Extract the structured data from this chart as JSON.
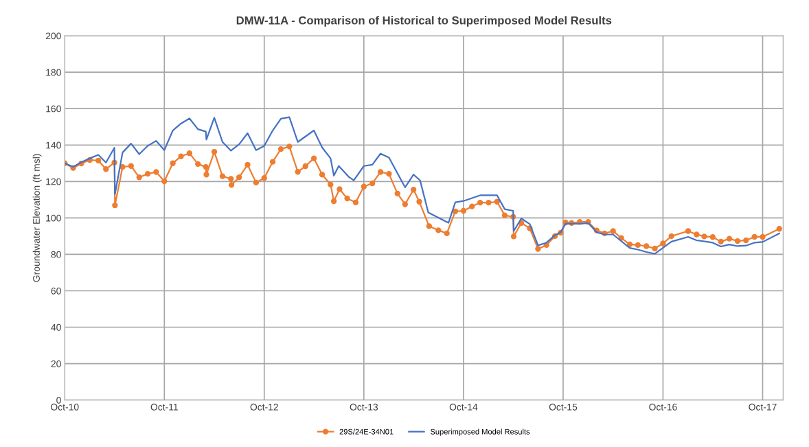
{
  "chart_data": {
    "type": "line",
    "title": "DMW-11A - Comparison of Historical to Superimposed Model Results",
    "ylabel": "Groundwater Elevation (ft msl)",
    "xlim": [
      "2010-10-01",
      "2017-12-15"
    ],
    "ylim": [
      0,
      200
    ],
    "yticks": [
      0,
      20,
      40,
      60,
      80,
      100,
      120,
      140,
      160,
      180,
      200
    ],
    "xticks": [
      {
        "value": "2010-10-01",
        "label": "Oct-10"
      },
      {
        "value": "2011-10-01",
        "label": "Oct-11"
      },
      {
        "value": "2012-10-01",
        "label": "Oct-12"
      },
      {
        "value": "2013-10-01",
        "label": "Oct-13"
      },
      {
        "value": "2014-10-01",
        "label": "Oct-14"
      },
      {
        "value": "2015-10-01",
        "label": "Oct-15"
      },
      {
        "value": "2016-10-01",
        "label": "Oct-16"
      },
      {
        "value": "2017-10-01",
        "label": "Oct-17"
      }
    ],
    "grid": true,
    "legend": "bottom",
    "series": [
      {
        "name": "29S/24E-34N01",
        "color": "#ed7d31",
        "marker": "circle",
        "x": [
          "2010-10-01",
          "2010-11-01",
          "2010-12-01",
          "2011-01-01",
          "2011-02-01",
          "2011-03-01",
          "2011-04-01",
          "2011-04-03",
          "2011-05-01",
          "2011-06-01",
          "2011-07-01",
          "2011-08-01",
          "2011-09-01",
          "2011-10-01",
          "2011-11-01",
          "2011-12-01",
          "2012-01-01",
          "2012-02-01",
          "2012-03-01",
          "2012-03-03",
          "2012-04-01",
          "2012-05-01",
          "2012-06-01",
          "2012-06-03",
          "2012-07-01",
          "2012-08-01",
          "2012-09-01",
          "2012-10-01",
          "2012-11-01",
          "2012-12-01",
          "2013-01-01",
          "2013-02-01",
          "2013-03-01",
          "2013-04-01",
          "2013-05-01",
          "2013-06-01",
          "2013-06-13",
          "2013-07-04",
          "2013-08-01",
          "2013-09-01",
          "2013-10-01",
          "2013-11-01",
          "2013-12-01",
          "2014-01-01",
          "2014-02-01",
          "2014-03-01",
          "2014-04-01",
          "2014-04-22",
          "2014-05-28",
          "2014-07-01",
          "2014-08-01",
          "2014-09-01",
          "2014-10-01",
          "2014-11-01",
          "2014-12-01",
          "2015-01-01",
          "2015-02-01",
          "2015-03-01",
          "2015-04-01",
          "2015-04-03",
          "2015-05-01",
          "2015-06-01",
          "2015-07-01",
          "2015-08-01",
          "2015-09-01",
          "2015-09-22",
          "2015-10-10",
          "2015-11-01",
          "2015-12-01",
          "2016-01-01",
          "2016-02-01",
          "2016-03-01",
          "2016-04-01",
          "2016-05-01",
          "2016-06-01",
          "2016-07-01",
          "2016-08-01",
          "2016-09-01",
          "2016-10-01",
          "2016-11-01",
          "2017-01-01",
          "2017-02-01",
          "2017-03-01",
          "2017-04-01",
          "2017-05-01",
          "2017-06-01",
          "2017-07-01",
          "2017-08-01",
          "2017-09-01",
          "2017-10-01",
          "2017-12-01"
        ],
        "values": [
          130,
          127.4,
          129.9,
          131.8,
          131.5,
          126.8,
          130.4,
          106.9,
          128,
          128.5,
          122.3,
          124.2,
          125.2,
          120.1,
          130,
          133.8,
          135.5,
          129.6,
          128,
          123.8,
          136.3,
          122.9,
          121.5,
          118.1,
          122.3,
          129.2,
          119.4,
          121.9,
          130.8,
          137.8,
          139.2,
          125.3,
          128.4,
          132.7,
          123.8,
          118.3,
          109.2,
          115.8,
          110.7,
          108.5,
          117.2,
          119,
          125.2,
          124.2,
          113.4,
          107.5,
          115.5,
          108.9,
          95.5,
          93.2,
          91.5,
          103.6,
          103.9,
          106.3,
          108.4,
          108.4,
          108.9,
          101.4,
          100.6,
          89.8,
          97.2,
          94.3,
          83,
          85.1,
          90,
          91.9,
          97.5,
          97.2,
          97.8,
          97.8,
          93.1,
          91.5,
          92.8,
          89,
          85.5,
          85.1,
          84.5,
          83.2,
          86,
          90,
          92.8,
          90.9,
          89.8,
          89.5,
          87,
          88.6,
          87.3,
          87.7,
          89.6,
          89.6,
          94
        ]
      },
      {
        "name": "Superimposed Model Results",
        "color": "#4472c4",
        "marker": "none",
        "x": [
          "2010-10-01",
          "2010-11-01",
          "2010-12-01",
          "2011-01-01",
          "2011-02-01",
          "2011-03-01",
          "2011-04-01",
          "2011-04-03",
          "2011-05-01",
          "2011-06-01",
          "2011-07-01",
          "2011-08-01",
          "2011-09-01",
          "2011-10-01",
          "2011-11-01",
          "2011-12-01",
          "2012-01-01",
          "2012-02-01",
          "2012-03-01",
          "2012-03-03",
          "2012-04-01",
          "2012-05-01",
          "2012-06-01",
          "2012-07-01",
          "2012-08-01",
          "2012-09-01",
          "2012-10-01",
          "2012-11-01",
          "2012-12-01",
          "2013-01-01",
          "2013-02-01",
          "2013-04-01",
          "2013-05-01",
          "2013-06-01",
          "2013-06-13",
          "2013-07-01",
          "2013-08-07",
          "2013-08-25",
          "2013-10-01",
          "2013-11-01",
          "2013-12-01",
          "2014-01-01",
          "2014-03-01",
          "2014-04-01",
          "2014-04-25",
          "2014-05-25",
          "2014-08-07",
          "2014-09-01",
          "2014-10-01",
          "2014-12-01",
          "2015-01-01",
          "2015-02-01",
          "2015-03-01",
          "2015-04-01",
          "2015-04-03",
          "2015-05-01",
          "2015-06-01",
          "2015-07-01",
          "2015-08-01",
          "2015-09-01",
          "2015-09-22",
          "2015-10-10",
          "2015-12-01",
          "2016-01-01",
          "2016-02-01",
          "2016-03-01",
          "2016-04-01",
          "2016-06-01",
          "2016-07-01",
          "2016-08-01",
          "2016-09-01",
          "2016-11-01",
          "2017-01-01",
          "2017-02-01",
          "2017-04-01",
          "2017-05-01",
          "2017-06-01",
          "2017-07-01",
          "2017-08-01",
          "2017-09-01",
          "2017-10-01",
          "2017-12-01"
        ],
        "values": [
          130,
          128,
          130.6,
          132.7,
          134.6,
          130.4,
          138.5,
          113,
          135.9,
          140.8,
          135,
          139.5,
          142.3,
          137.2,
          148,
          151.8,
          154.6,
          148.7,
          147.4,
          143,
          155,
          141.7,
          136.9,
          140.4,
          146.5,
          137.2,
          139.5,
          148,
          154.5,
          155.3,
          141.7,
          148,
          138.7,
          132.7,
          123.2,
          128.5,
          122.5,
          120.6,
          128.5,
          129.2,
          135.3,
          133.1,
          116.8,
          123.8,
          120.6,
          103,
          97.3,
          108.6,
          109.3,
          112.4,
          112.4,
          112.4,
          104.8,
          103.9,
          92.8,
          99.7,
          96.6,
          84.9,
          86.4,
          90.5,
          92.1,
          96.8,
          96.8,
          97.2,
          92.1,
          90.9,
          90.9,
          83.5,
          82.6,
          81.3,
          80.3,
          87,
          89.6,
          87.7,
          86.4,
          84.3,
          85.4,
          84.5,
          84.8,
          86.4,
          86.8,
          91.5
        ]
      }
    ]
  }
}
